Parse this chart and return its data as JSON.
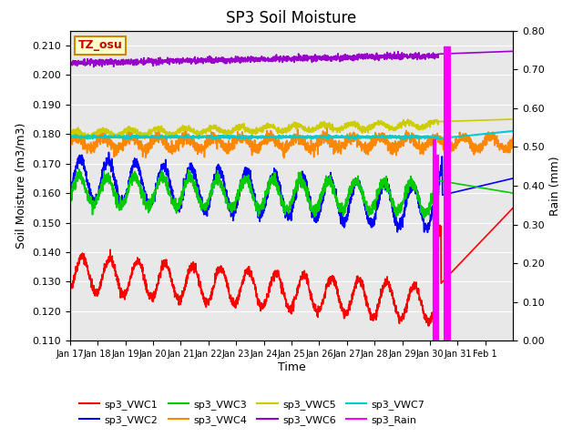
{
  "title": "SP3 Soil Moisture",
  "xlabel": "Time",
  "ylabel_left": "Soil Moisture (m3/m3)",
  "ylabel_right": "Rain (mm)",
  "ylim_left": [
    0.11,
    0.215
  ],
  "ylim_right": [
    0.0,
    0.8
  ],
  "plot_bg_color": "#e8e8e8",
  "tick_labels": [
    "Jan 17",
    "Jan 18",
    "Jan 19",
    "Jan 20",
    "Jan 21",
    "Jan 22",
    "Jan 23",
    "Jan 24",
    "Jan 25",
    "Jan 26",
    "Jan 27",
    "Jan 28",
    "Jan 29",
    "Jan 30",
    "Jan 31",
    "Feb 1"
  ],
  "series": {
    "sp3_VWC1": {
      "color": "#ff0000",
      "lw": 1.2
    },
    "sp3_VWC2": {
      "color": "#0000ff",
      "lw": 1.2
    },
    "sp3_VWC3": {
      "color": "#00cc00",
      "lw": 1.2
    },
    "sp3_VWC4": {
      "color": "#ff8800",
      "lw": 1.2
    },
    "sp3_VWC5": {
      "color": "#cccc00",
      "lw": 1.2
    },
    "sp3_VWC6": {
      "color": "#9900cc",
      "lw": 1.2
    },
    "sp3_VWC7": {
      "color": "#00cccc",
      "lw": 1.5
    },
    "sp3_Rain": {
      "color": "#ff00ff",
      "lw": 1.0
    }
  },
  "annotation_box": {
    "text": "TZ_osu",
    "text_color": "#cc0000",
    "bg_color": "#ffffcc",
    "edge_color": "#cc8800"
  }
}
